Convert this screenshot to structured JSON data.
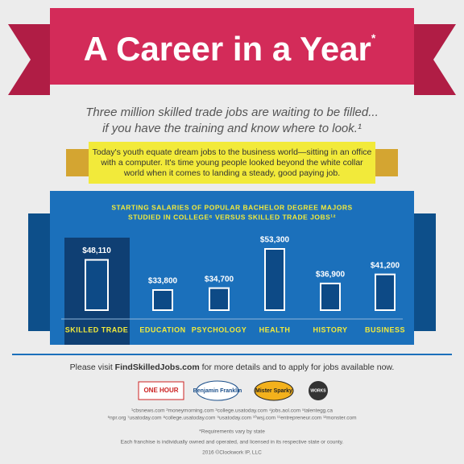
{
  "banner": {
    "title": "A Career in a Year",
    "mark": "*"
  },
  "subtitle": [
    "Three million skilled trade jobs are waiting to be filled...",
    "if you have the training and know where to look.¹"
  ],
  "ribbon_text": [
    "Today's youth equate dream jobs to the business world—sitting in an office",
    "with a computer. It's time young people looked beyond the white collar",
    "world when it comes to landing a steady, good paying job."
  ],
  "chart_data": {
    "type": "bar",
    "title": [
      "STARTING SALARIES OF POPULAR BACHELOR DEGREE MAJORS",
      "STUDIED IN COLLEGE⁶ VERSUS SKILLED TRADE JOBS¹²"
    ],
    "categories": [
      "SKILLED TRADE",
      "EDUCATION",
      "PSYCHOLOGY",
      "HEALTH",
      "HISTORY",
      "BUSINESS"
    ],
    "values": [
      48110,
      33800,
      34700,
      53300,
      36900,
      41200
    ],
    "value_labels": [
      "$48,110",
      "$33,800",
      "$34,700",
      "$53,300",
      "$36,900",
      "$41,200"
    ],
    "color": "#0d4a86"
  },
  "footer": {
    "visit": [
      "Please visit ",
      "FindSkilledJobs.com",
      " for more details and to apply for jobs available now."
    ],
    "logos": [
      "ONE HOUR",
      "Benjamin Franklin",
      "Mister Sparky",
      "WORKS"
    ],
    "sources": [
      "¹cbsnews.com ²moneymorning.com ³college.usatoday.com ⁴jobs.aol.com ⁵talentegg.ca",
      "⁶npr.org ⁷usatoday.com ⁸college.usatoday.com ⁹usatoday.com ¹⁰wsj.com ¹¹entrepreneur.com ¹²monster.com"
    ],
    "notes": [
      "*Requirements vary by state",
      "Each franchise is individually owned and operated, and licensed in its respective state or county.",
      "2016 ©Clockwork IP, LLC"
    ]
  }
}
